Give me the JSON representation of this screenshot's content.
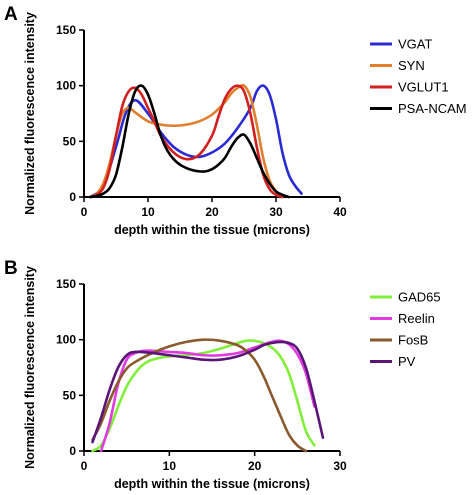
{
  "chart_data": [
    {
      "type": "line",
      "panel_label": "A",
      "xlabel": "depth within the tissue (microns)",
      "ylabel": "Normalized fluorescence intensity",
      "xlim": [
        0,
        40
      ],
      "ylim": [
        0,
        150
      ],
      "xticks": [
        0,
        10,
        20,
        30,
        40
      ],
      "yticks": [
        0,
        50,
        100,
        150
      ],
      "legend_position": "right",
      "series": [
        {
          "name": "VGAT",
          "color": "#2b2bd6",
          "x": [
            1,
            3,
            5,
            6.5,
            8,
            10,
            12,
            14,
            16,
            18,
            20,
            22,
            24,
            26,
            27,
            28,
            29,
            30,
            31,
            32,
            33,
            34
          ],
          "y": [
            0,
            10,
            45,
            75,
            87,
            75,
            58,
            45,
            38,
            36,
            40,
            48,
            62,
            80,
            95,
            100,
            92,
            70,
            40,
            20,
            10,
            3
          ]
        },
        {
          "name": "SYN",
          "color": "#e07f2e",
          "x": [
            1,
            2,
            3,
            4,
            5,
            6,
            7,
            8,
            10,
            12,
            14,
            16,
            18,
            20,
            22,
            23,
            24,
            25,
            26,
            27,
            28,
            29,
            30,
            31
          ],
          "y": [
            0,
            3,
            12,
            30,
            55,
            75,
            80,
            76,
            68,
            65,
            64,
            65,
            68,
            74,
            85,
            93,
            98,
            100,
            90,
            65,
            35,
            15,
            5,
            0
          ]
        },
        {
          "name": "VGLUT1",
          "color": "#d21f1f",
          "x": [
            1,
            2,
            3,
            4,
            5,
            6,
            7,
            8,
            9,
            10,
            11,
            12,
            14,
            16,
            18,
            20,
            21,
            22,
            23,
            24,
            25,
            26,
            27,
            28,
            29,
            30,
            31
          ],
          "y": [
            0,
            2,
            8,
            25,
            55,
            82,
            95,
            98,
            92,
            80,
            68,
            55,
            40,
            34,
            38,
            55,
            72,
            88,
            97,
            100,
            95,
            75,
            45,
            20,
            7,
            2,
            0
          ]
        },
        {
          "name": "PSA-NCAM",
          "color": "#000000",
          "x": [
            1,
            2,
            3,
            4,
            5,
            6,
            7,
            8,
            9,
            10,
            11,
            12,
            13,
            14,
            15,
            16,
            17,
            18,
            19,
            20,
            21,
            22,
            23,
            24,
            25,
            26,
            27,
            28,
            29,
            30,
            31,
            32
          ],
          "y": [
            0,
            1,
            3,
            8,
            20,
            45,
            75,
            95,
            100,
            92,
            75,
            55,
            42,
            34,
            29,
            26,
            24,
            23,
            23,
            25,
            29,
            35,
            45,
            53,
            56,
            48,
            35,
            22,
            12,
            5,
            2,
            0
          ]
        }
      ]
    },
    {
      "type": "line",
      "panel_label": "B",
      "xlabel": "depth within the tissue (microns)",
      "ylabel": "Normalized fluorescence intensity",
      "xlim": [
        0,
        30
      ],
      "ylim": [
        0,
        150
      ],
      "xticks": [
        0,
        10,
        20,
        30
      ],
      "yticks": [
        0,
        50,
        100,
        150
      ],
      "legend_position": "right",
      "series": [
        {
          "name": "GAD65",
          "color": "#80ee3a",
          "x": [
            1,
            2,
            3,
            4,
            5,
            6,
            7,
            8,
            10,
            12,
            14,
            16,
            18,
            19,
            20,
            21,
            22,
            23,
            24,
            25,
            26,
            27
          ],
          "y": [
            0,
            5,
            20,
            40,
            58,
            70,
            78,
            82,
            85,
            86,
            88,
            92,
            97,
            99,
            99,
            97,
            93,
            85,
            70,
            45,
            18,
            5
          ]
        },
        {
          "name": "Reelin",
          "color": "#e03ae0",
          "x": [
            2,
            3,
            4,
            5,
            6,
            7,
            8,
            10,
            12,
            14,
            16,
            18,
            20,
            22,
            23,
            24,
            25,
            26,
            27
          ],
          "y": [
            0,
            25,
            60,
            82,
            88,
            90,
            90,
            89,
            88,
            86,
            86,
            88,
            93,
            98,
            99,
            96,
            87,
            70,
            40
          ]
        },
        {
          "name": "FosB",
          "color": "#8a5a2e",
          "x": [
            1,
            2,
            3,
            4,
            5,
            6,
            8,
            10,
            12,
            14,
            16,
            18,
            19,
            20,
            21,
            22,
            23,
            24,
            25,
            26
          ],
          "y": [
            10,
            25,
            45,
            62,
            74,
            80,
            88,
            94,
            98,
            100,
            99,
            95,
            90,
            82,
            68,
            50,
            32,
            15,
            5,
            0
          ]
        },
        {
          "name": "PV",
          "color": "#5a1676",
          "x": [
            1,
            2,
            3,
            4,
            5,
            6,
            8,
            10,
            12,
            14,
            16,
            18,
            20,
            21,
            22,
            23,
            24,
            25,
            26,
            27,
            28
          ],
          "y": [
            8,
            30,
            55,
            75,
            86,
            89,
            88,
            86,
            84,
            82,
            82,
            85,
            91,
            95,
            97,
            98,
            97,
            92,
            75,
            45,
            12
          ]
        }
      ]
    }
  ]
}
